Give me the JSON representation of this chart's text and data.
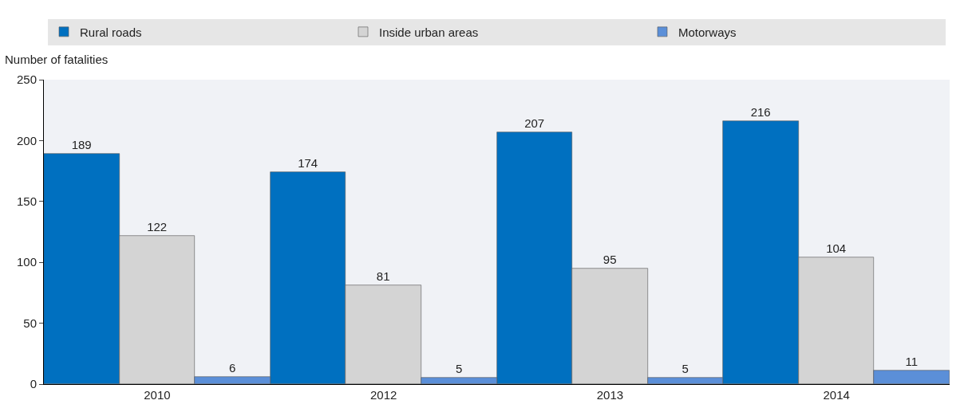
{
  "chart_data": {
    "type": "bar",
    "ylabel": "Number of fatalities",
    "categories": [
      "2010",
      "2012",
      "2013",
      "2014"
    ],
    "series": [
      {
        "name": "Rural roads",
        "color": "#0070c0",
        "values": [
          189,
          174,
          207,
          216
        ]
      },
      {
        "name": "Inside urban areas",
        "color": "#d4d4d4",
        "values": [
          122,
          81,
          95,
          104
        ]
      },
      {
        "name": "Motorways",
        "color": "#5b8fd8",
        "values": [
          6,
          5,
          5,
          11
        ]
      }
    ],
    "ylim": [
      0,
      250
    ],
    "yticks": [
      0,
      50,
      100,
      150,
      200,
      250
    ],
    "grid": false,
    "legend": "top",
    "data_labels": true
  }
}
